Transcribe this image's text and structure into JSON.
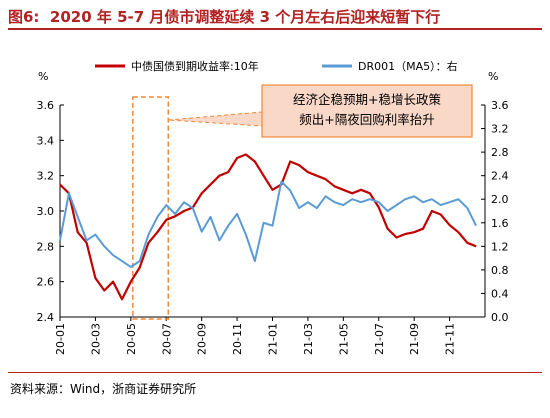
{
  "figure": {
    "label": "图6:",
    "title": "2020 年 5-7 月债市调整延续 3 个月左右后迎来短暂下行",
    "source": "资料来源：Wind，浙商证券研究所"
  },
  "chart_data": {
    "type": "line",
    "title": "",
    "legend_position": "top",
    "grid": false,
    "left_axis": {
      "unit": "%",
      "ylim": [
        2.4,
        3.6
      ],
      "ticks": [
        "2.4",
        "2.6",
        "2.8",
        "3.0",
        "3.2",
        "3.4",
        "3.6"
      ]
    },
    "right_axis": {
      "unit": "%",
      "ylim": [
        0.0,
        3.6
      ],
      "ticks": [
        "0.0",
        "0.4",
        "0.8",
        "1.2",
        "1.6",
        "2.0",
        "2.4",
        "2.8",
        "3.2",
        "3.6"
      ]
    },
    "x_ticks": [
      "20-01",
      "20-03",
      "20-05",
      "20-07",
      "20-09",
      "20-11",
      "21-01",
      "21-03",
      "21-05",
      "21-07",
      "21-09",
      "21-11"
    ],
    "x_range": [
      "20-01",
      "22-01"
    ],
    "series": [
      {
        "name": "中债国债到期收益率:10年",
        "axis": "left",
        "color": "#c00000",
        "points": [
          [
            "20-01",
            3.15
          ],
          [
            "20-01.5",
            3.1
          ],
          [
            "20-02",
            2.88
          ],
          [
            "20-02.5",
            2.82
          ],
          [
            "20-03",
            2.62
          ],
          [
            "20-03.5",
            2.55
          ],
          [
            "20-04",
            2.6
          ],
          [
            "20-04.5",
            2.5
          ],
          [
            "20-05",
            2.6
          ],
          [
            "20-05.5",
            2.68
          ],
          [
            "20-06",
            2.82
          ],
          [
            "20-06.5",
            2.88
          ],
          [
            "20-07",
            2.95
          ],
          [
            "20-07.5",
            2.97
          ],
          [
            "20-08",
            3.0
          ],
          [
            "20-08.5",
            3.02
          ],
          [
            "20-09",
            3.1
          ],
          [
            "20-09.5",
            3.15
          ],
          [
            "20-10",
            3.2
          ],
          [
            "20-10.5",
            3.22
          ],
          [
            "20-11",
            3.3
          ],
          [
            "20-11.5",
            3.32
          ],
          [
            "20-12",
            3.28
          ],
          [
            "20-12.5",
            3.2
          ],
          [
            "21-01",
            3.12
          ],
          [
            "21-01.5",
            3.15
          ],
          [
            "21-02",
            3.28
          ],
          [
            "21-02.5",
            3.26
          ],
          [
            "21-03",
            3.22
          ],
          [
            "21-03.5",
            3.2
          ],
          [
            "21-04",
            3.18
          ],
          [
            "21-04.5",
            3.14
          ],
          [
            "21-05",
            3.12
          ],
          [
            "21-05.5",
            3.1
          ],
          [
            "21-06",
            3.12
          ],
          [
            "21-06.5",
            3.1
          ],
          [
            "21-07",
            3.02
          ],
          [
            "21-07.5",
            2.9
          ],
          [
            "21-08",
            2.85
          ],
          [
            "21-08.5",
            2.87
          ],
          [
            "21-09",
            2.88
          ],
          [
            "21-09.5",
            2.9
          ],
          [
            "21-10",
            3.0
          ],
          [
            "21-10.5",
            2.98
          ],
          [
            "21-11",
            2.92
          ],
          [
            "21-11.5",
            2.88
          ],
          [
            "21-12",
            2.82
          ],
          [
            "21-12.5",
            2.8
          ]
        ]
      },
      {
        "name": "DR001（MA5）：右",
        "axis": "right",
        "color": "#5b9bd5",
        "points": [
          [
            "20-01",
            1.3
          ],
          [
            "20-01.5",
            2.1
          ],
          [
            "20-02",
            1.7
          ],
          [
            "20-02.5",
            1.3
          ],
          [
            "20-03",
            1.4
          ],
          [
            "20-03.5",
            1.2
          ],
          [
            "20-04",
            1.05
          ],
          [
            "20-04.5",
            0.95
          ],
          [
            "20-05",
            0.85
          ],
          [
            "20-05.5",
            0.95
          ],
          [
            "20-06",
            1.4
          ],
          [
            "20-06.5",
            1.7
          ],
          [
            "20-07",
            1.9
          ],
          [
            "20-07.5",
            1.75
          ],
          [
            "20-08",
            1.95
          ],
          [
            "20-08.5",
            1.85
          ],
          [
            "20-09",
            1.45
          ],
          [
            "20-09.5",
            1.7
          ],
          [
            "20-10",
            1.3
          ],
          [
            "20-10.5",
            1.55
          ],
          [
            "20-11",
            1.75
          ],
          [
            "20-11.5",
            1.4
          ],
          [
            "20-12",
            0.95
          ],
          [
            "20-12.5",
            1.6
          ],
          [
            "21-01",
            1.55
          ],
          [
            "21-01.5",
            2.3
          ],
          [
            "21-02",
            2.15
          ],
          [
            "21-02.5",
            1.85
          ],
          [
            "21-03",
            1.95
          ],
          [
            "21-03.5",
            1.85
          ],
          [
            "21-04",
            2.05
          ],
          [
            "21-04.5",
            1.95
          ],
          [
            "21-05",
            1.9
          ],
          [
            "21-05.5",
            2.0
          ],
          [
            "21-06",
            1.95
          ],
          [
            "21-06.5",
            2.0
          ],
          [
            "21-07",
            1.95
          ],
          [
            "21-07.5",
            1.8
          ],
          [
            "21-08",
            1.9
          ],
          [
            "21-08.5",
            2.0
          ],
          [
            "21-09",
            2.05
          ],
          [
            "21-09.5",
            1.95
          ],
          [
            "21-10",
            2.0
          ],
          [
            "21-10.5",
            1.9
          ],
          [
            "21-11",
            1.95
          ],
          [
            "21-11.5",
            2.0
          ],
          [
            "21-12",
            1.85
          ],
          [
            "21-12.5",
            1.55
          ]
        ]
      }
    ],
    "highlight": {
      "x_start": "20-05",
      "x_end": "20-07",
      "style": "dashed",
      "color": "#f0883a"
    },
    "callout": {
      "lines": [
        "经济企稳预期+稳增长政策",
        "频出+隔夜回购利率抬升"
      ],
      "fill": "#f9d8c8",
      "stroke": "#f0883a"
    }
  }
}
